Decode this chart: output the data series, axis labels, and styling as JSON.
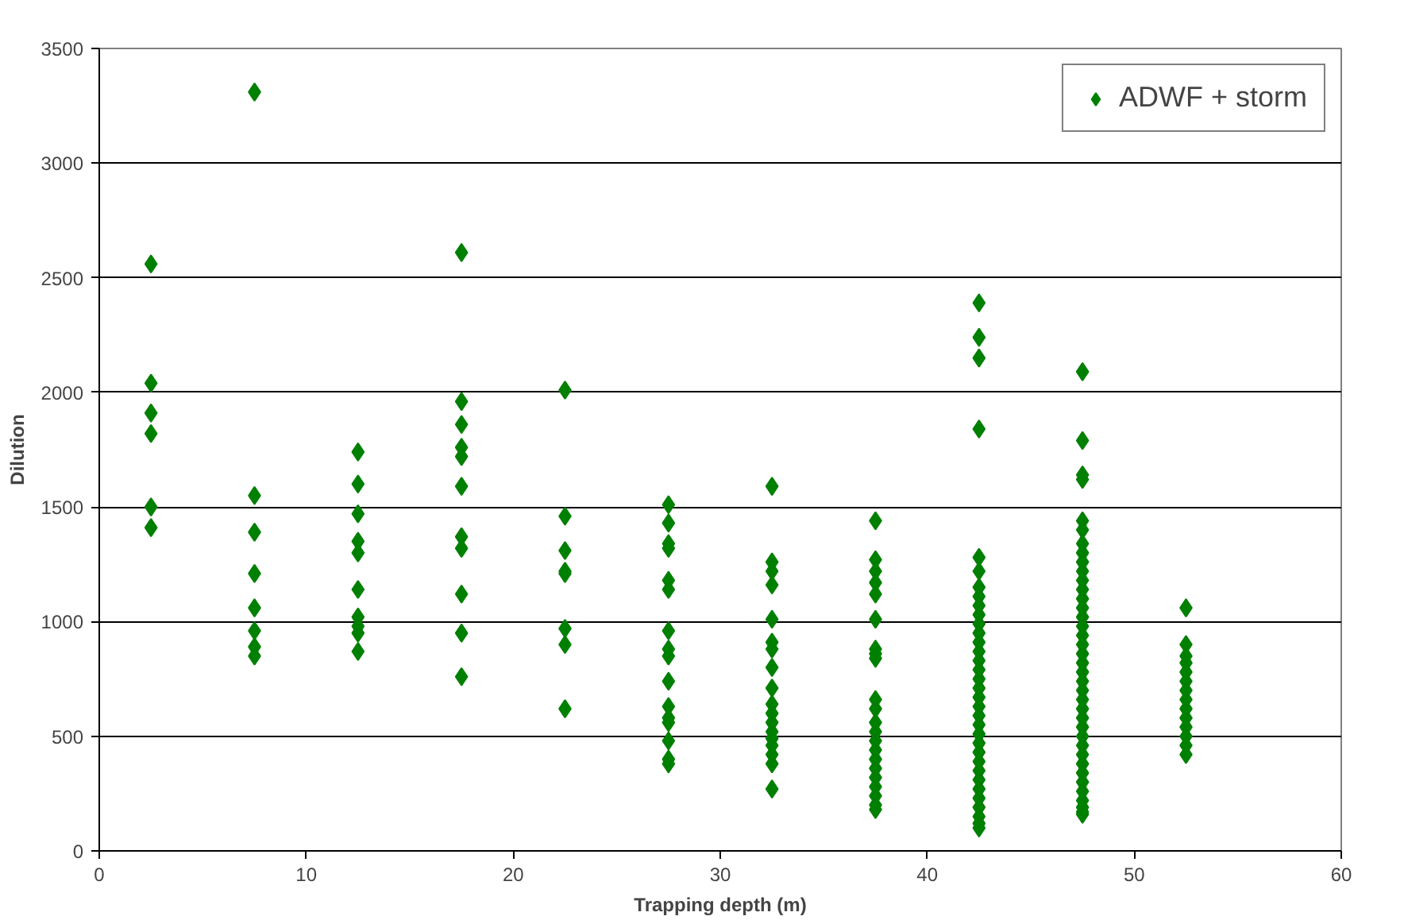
{
  "chart_data": {
    "type": "scatter",
    "xlabel": "Trapping depth (m)",
    "ylabel": "Dilution",
    "xlim": [
      0,
      60
    ],
    "xticks": [
      0,
      10,
      20,
      30,
      40,
      50,
      60
    ],
    "ylim": [
      0,
      3500
    ],
    "yticks": [
      0,
      500,
      1000,
      1500,
      2000,
      2500,
      3000,
      3500
    ],
    "grid": "y",
    "legend": "top right",
    "marker": "diamond",
    "series": [
      {
        "name": "ADWF + storm",
        "color": "#008000",
        "x": [
          2.5,
          2.5,
          2.5,
          2.5,
          2.5,
          2.5,
          7.5,
          7.5,
          7.5,
          7.5,
          7.5,
          7.5,
          7.5,
          7.5,
          12.5,
          12.5,
          12.5,
          12.5,
          12.5,
          12.5,
          12.5,
          12.5,
          12.5,
          12.5,
          17.5,
          17.5,
          17.5,
          17.5,
          17.5,
          17.5,
          17.5,
          17.5,
          17.5,
          17.5,
          17.5,
          22.5,
          22.5,
          22.5,
          22.5,
          22.5,
          22.5,
          22.5,
          22.5,
          27.5,
          27.5,
          27.5,
          27.5,
          27.5,
          27.5,
          27.5,
          27.5,
          27.5,
          27.5,
          27.5,
          27.5,
          27.5,
          27.5,
          27.5,
          27.5,
          32.5,
          32.5,
          32.5,
          32.5,
          32.5,
          32.5,
          32.5,
          32.5,
          32.5,
          32.5,
          32.5,
          32.5,
          32.5,
          32.5,
          32.5,
          32.5,
          32.5,
          32.5,
          37.5,
          37.5,
          37.5,
          37.5,
          37.5,
          37.5,
          37.5,
          37.5,
          37.5,
          37.5,
          37.5,
          37.5,
          37.5,
          37.5,
          37.5,
          37.5,
          37.5,
          37.5,
          37.5,
          37.5,
          37.5,
          37.5,
          42.5,
          42.5,
          42.5,
          42.5,
          42.5,
          42.5,
          42.5,
          42.5,
          42.5,
          42.5,
          42.5,
          42.5,
          42.5,
          42.5,
          42.5,
          42.5,
          42.5,
          42.5,
          42.5,
          42.5,
          42.5,
          42.5,
          42.5,
          42.5,
          42.5,
          42.5,
          42.5,
          42.5,
          42.5,
          42.5,
          42.5,
          42.5,
          42.5,
          42.5,
          47.5,
          47.5,
          47.5,
          47.5,
          47.5,
          47.5,
          47.5,
          47.5,
          47.5,
          47.5,
          47.5,
          47.5,
          47.5,
          47.5,
          47.5,
          47.5,
          47.5,
          47.5,
          47.5,
          47.5,
          47.5,
          47.5,
          47.5,
          47.5,
          47.5,
          47.5,
          47.5,
          47.5,
          47.5,
          47.5,
          47.5,
          47.5,
          47.5,
          47.5,
          47.5,
          47.5,
          47.5,
          47.5,
          52.5,
          52.5,
          52.5,
          52.5,
          52.5,
          52.5,
          52.5,
          52.5,
          52.5,
          52.5,
          52.5,
          52.5,
          52.5,
          52.5
        ],
        "values": [
          2560,
          2040,
          1910,
          1820,
          1500,
          1410,
          3310,
          1550,
          1390,
          1210,
          1060,
          960,
          890,
          850,
          1740,
          1600,
          1470,
          1350,
          1300,
          1140,
          1020,
          980,
          950,
          870,
          2610,
          1960,
          1860,
          1760,
          1720,
          1590,
          1370,
          1320,
          1120,
          950,
          760,
          2010,
          1460,
          1310,
          1220,
          1210,
          970,
          900,
          620,
          1510,
          1430,
          1340,
          1320,
          1180,
          1140,
          960,
          880,
          850,
          740,
          630,
          580,
          560,
          480,
          400,
          380,
          1590,
          1260,
          1220,
          1160,
          1010,
          910,
          880,
          800,
          710,
          640,
          600,
          560,
          520,
          490,
          460,
          420,
          380,
          270,
          1440,
          1270,
          1220,
          1170,
          1120,
          1010,
          880,
          860,
          840,
          660,
          620,
          560,
          520,
          480,
          440,
          400,
          360,
          320,
          280,
          240,
          200,
          180,
          2390,
          2240,
          2150,
          1840,
          1280,
          1220,
          1150,
          1110,
          1070,
          1030,
          990,
          950,
          910,
          870,
          830,
          790,
          750,
          710,
          670,
          630,
          590,
          550,
          510,
          470,
          430,
          390,
          350,
          310,
          270,
          230,
          190,
          150,
          120,
          100,
          2090,
          1790,
          1640,
          1620,
          1440,
          1400,
          1340,
          1300,
          1260,
          1220,
          1180,
          1140,
          1100,
          1060,
          1020,
          980,
          940,
          900,
          860,
          820,
          780,
          740,
          700,
          660,
          620,
          580,
          540,
          500,
          460,
          420,
          380,
          340,
          300,
          260,
          220,
          190,
          170,
          160,
          1060,
          900,
          850,
          820,
          780,
          740,
          700,
          660,
          620,
          580,
          540,
          500,
          460,
          420
        ]
      }
    ]
  }
}
